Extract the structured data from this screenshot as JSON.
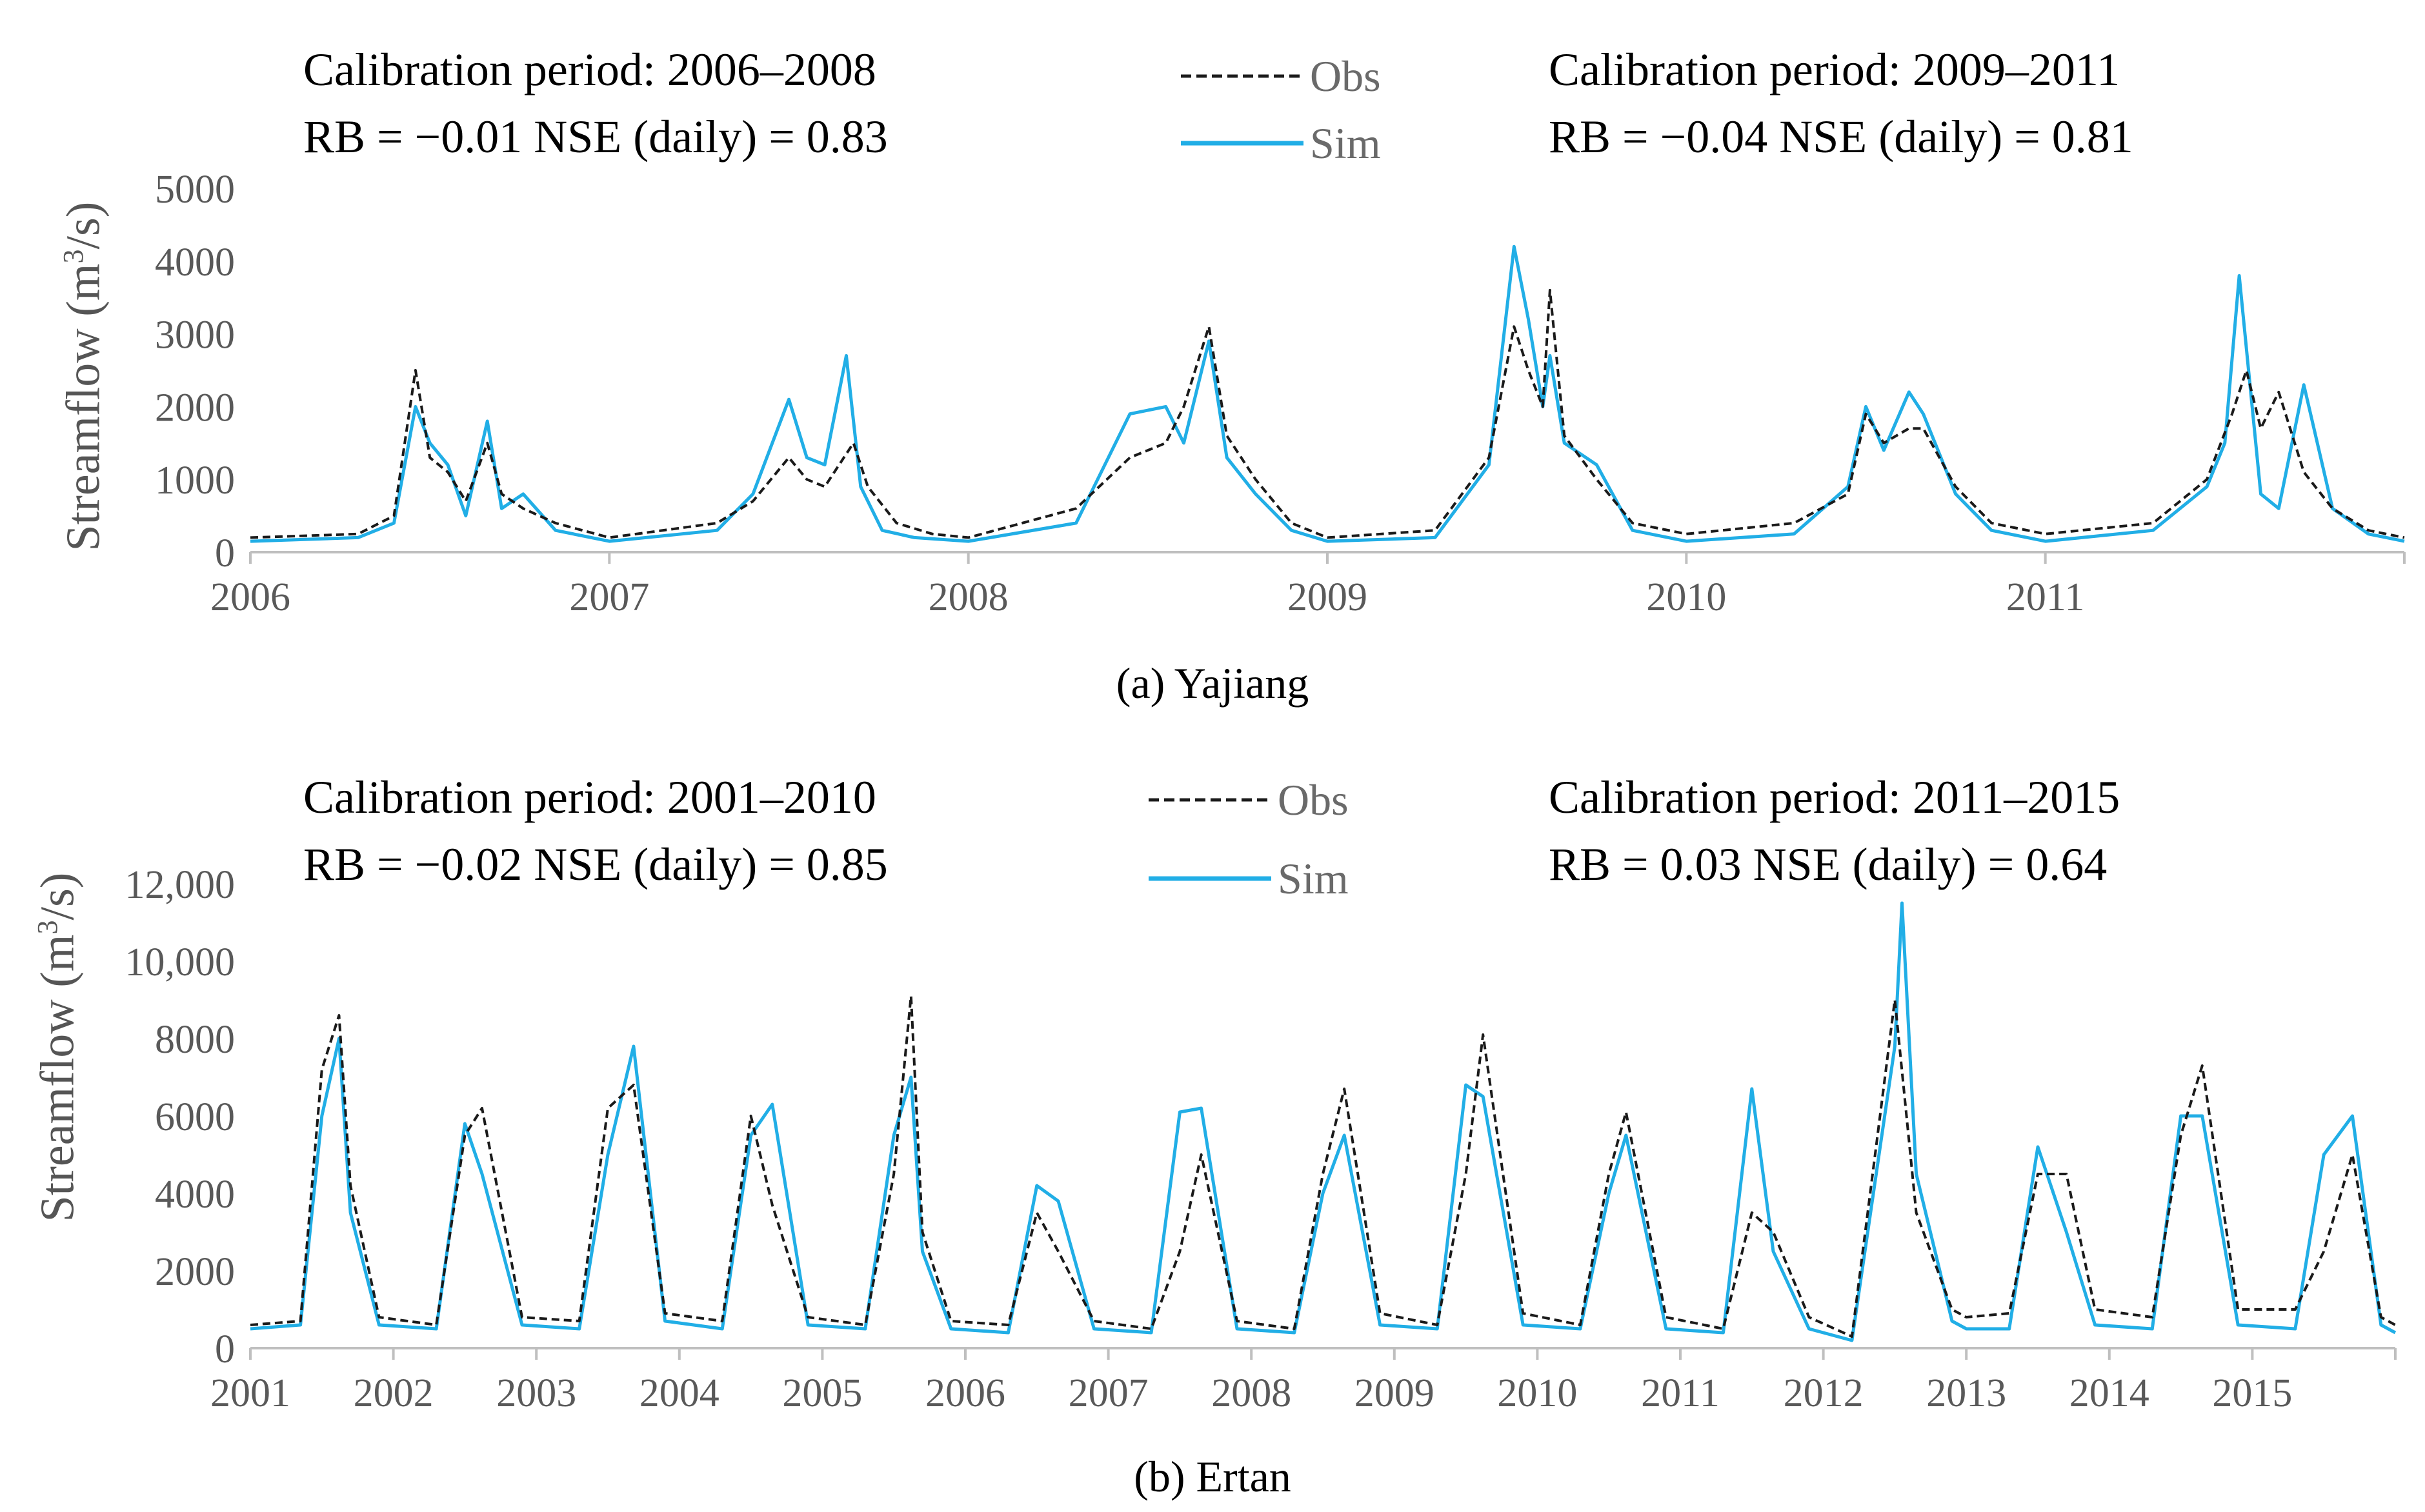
{
  "legend": {
    "obs": "Obs",
    "sim": "Sim"
  },
  "colors": {
    "obs": "#1a1a1a",
    "sim": "#21aee6",
    "axis": "#bfbfbf",
    "tick": "#595959"
  },
  "y_title": {
    "prefix": "Streamflow (m",
    "sup": "3",
    "suffix": "/s)"
  },
  "panel_a": {
    "left_period": "Calibration period: 2006–2008",
    "left_stats": "RB = −0.01  NSE (daily) = 0.83",
    "right_period": "Calibration period: 2009–2011",
    "right_stats": "RB = −0.04  NSE (daily) = 0.81",
    "caption": "(a) Yajiang"
  },
  "panel_b": {
    "left_period": "Calibration period: 2001–2010",
    "left_stats": "RB = −0.02  NSE (daily) = 0.85",
    "right_period": "Calibration period: 2011–2015",
    "right_stats": "RB = 0.03  NSE (daily) = 0.64",
    "caption": "(b) Ertan"
  },
  "chart_data": [
    {
      "type": "line",
      "title": "(a) Yajiang",
      "ylabel": "Streamflow (m3/s)",
      "ylim": [
        0,
        5000
      ],
      "yticks": [
        "0",
        "1000",
        "2000",
        "3000",
        "4000",
        "5000"
      ],
      "xlim": [
        2006,
        2012
      ],
      "xticks": [
        "2006",
        "2007",
        "2008",
        "2009",
        "2010",
        "2011"
      ],
      "grid": false,
      "legend": "top-center",
      "series": [
        {
          "name": "Obs",
          "style": "dashed",
          "x": [
            2006.0,
            2006.3,
            2006.4,
            2006.46,
            2006.5,
            2006.55,
            2006.6,
            2006.66,
            2006.7,
            2006.76,
            2006.85,
            2007.0,
            2007.3,
            2007.4,
            2007.5,
            2007.55,
            2007.6,
            2007.68,
            2007.72,
            2007.8,
            2007.9,
            2008.0,
            2008.3,
            2008.45,
            2008.55,
            2008.6,
            2008.67,
            2008.72,
            2008.8,
            2008.9,
            2009.0,
            2009.3,
            2009.45,
            2009.52,
            2009.56,
            2009.6,
            2009.62,
            2009.66,
            2009.75,
            2009.85,
            2010.0,
            2010.3,
            2010.45,
            2010.5,
            2010.55,
            2010.62,
            2010.66,
            2010.75,
            2010.85,
            2011.0,
            2011.3,
            2011.45,
            2011.52,
            2011.56,
            2011.6,
            2011.65,
            2011.72,
            2011.8,
            2011.9,
            2012.0
          ],
          "y": [
            200,
            250,
            500,
            2500,
            1300,
            1100,
            700,
            1500,
            800,
            600,
            400,
            200,
            400,
            700,
            1300,
            1000,
            900,
            1500,
            900,
            400,
            250,
            200,
            600,
            1300,
            1500,
            2000,
            3100,
            1600,
            1000,
            400,
            200,
            300,
            1300,
            3100,
            2500,
            2000,
            3600,
            1600,
            1000,
            400,
            250,
            400,
            800,
            1900,
            1500,
            1700,
            1700,
            900,
            400,
            250,
            400,
            1000,
            1900,
            2500,
            1700,
            2200,
            1100,
            600,
            300,
            200
          ]
        },
        {
          "name": "Sim",
          "style": "solid",
          "x": [
            2006.0,
            2006.3,
            2006.4,
            2006.46,
            2006.5,
            2006.55,
            2006.6,
            2006.66,
            2006.7,
            2006.76,
            2006.85,
            2007.0,
            2007.3,
            2007.4,
            2007.5,
            2007.55,
            2007.6,
            2007.66,
            2007.7,
            2007.76,
            2007.85,
            2008.0,
            2008.3,
            2008.45,
            2008.55,
            2008.6,
            2008.67,
            2008.72,
            2008.8,
            2008.9,
            2009.0,
            2009.3,
            2009.45,
            2009.52,
            2009.56,
            2009.6,
            2009.62,
            2009.66,
            2009.75,
            2009.85,
            2010.0,
            2010.3,
            2010.45,
            2010.5,
            2010.55,
            2010.62,
            2010.66,
            2010.75,
            2010.85,
            2011.0,
            2011.3,
            2011.45,
            2011.5,
            2011.54,
            2011.6,
            2011.65,
            2011.72,
            2011.8,
            2011.9,
            2012.0
          ],
          "y": [
            150,
            200,
            400,
            2000,
            1500,
            1200,
            500,
            1800,
            600,
            800,
            300,
            150,
            300,
            800,
            2100,
            1300,
            1200,
            2700,
            900,
            300,
            200,
            150,
            400,
            1900,
            2000,
            1500,
            2900,
            1300,
            800,
            300,
            150,
            200,
            1200,
            4200,
            3200,
            2000,
            2700,
            1500,
            1200,
            300,
            150,
            250,
            900,
            2000,
            1400,
            2200,
            1900,
            800,
            300,
            150,
            300,
            900,
            1500,
            3800,
            800,
            600,
            2300,
            600,
            250,
            150
          ]
        }
      ]
    },
    {
      "type": "line",
      "title": "(b) Ertan",
      "ylabel": "Streamflow (m3/s)",
      "ylim": [
        0,
        12000
      ],
      "yticks": [
        "0",
        "2000",
        "4000",
        "6000",
        "8000",
        "10,000",
        "12,000"
      ],
      "xlim": [
        2001,
        2016
      ],
      "xticks": [
        "2001",
        "2002",
        "2003",
        "2004",
        "2005",
        "2006",
        "2007",
        "2008",
        "2009",
        "2010",
        "2011",
        "2012",
        "2013",
        "2014",
        "2015"
      ],
      "grid": false,
      "legend": "top-center",
      "series": [
        {
          "name": "Obs",
          "style": "dashed",
          "x": [
            2001.0,
            2001.35,
            2001.5,
            2001.62,
            2001.7,
            2001.9,
            2002.3,
            2002.5,
            2002.62,
            2002.9,
            2003.3,
            2003.5,
            2003.68,
            2003.9,
            2004.3,
            2004.5,
            2004.65,
            2004.9,
            2005.3,
            2005.5,
            2005.62,
            2005.7,
            2005.9,
            2006.3,
            2006.5,
            2006.65,
            2006.9,
            2007.3,
            2007.5,
            2007.65,
            2007.9,
            2008.3,
            2008.5,
            2008.65,
            2008.9,
            2009.3,
            2009.5,
            2009.62,
            2009.9,
            2010.3,
            2010.5,
            2010.62,
            2010.9,
            2011.3,
            2011.5,
            2011.65,
            2011.9,
            2012.2,
            2012.5,
            2012.65,
            2012.9,
            2013.0,
            2013.3,
            2013.5,
            2013.7,
            2013.9,
            2014.3,
            2014.5,
            2014.65,
            2014.9,
            2015.3,
            2015.5,
            2015.7,
            2015.9,
            2016.0
          ],
          "y": [
            600,
            700,
            7200,
            8600,
            4200,
            800,
            600,
            5500,
            6200,
            800,
            700,
            6200,
            6800,
            900,
            700,
            6000,
            3700,
            800,
            600,
            4500,
            9100,
            3000,
            700,
            600,
            3500,
            2500,
            700,
            500,
            2500,
            5000,
            700,
            500,
            4500,
            6700,
            900,
            600,
            4500,
            8100,
            900,
            600,
            4500,
            6100,
            800,
            500,
            3500,
            3000,
            800,
            300,
            9000,
            3500,
            1000,
            800,
            900,
            4500,
            4500,
            1000,
            800,
            5500,
            7300,
            1000,
            1000,
            2500,
            5000,
            800,
            600
          ]
        },
        {
          "name": "Sim",
          "style": "solid",
          "x": [
            2001.0,
            2001.35,
            2001.5,
            2001.62,
            2001.7,
            2001.9,
            2002.3,
            2002.5,
            2002.62,
            2002.9,
            2003.3,
            2003.5,
            2003.68,
            2003.9,
            2004.3,
            2004.5,
            2004.65,
            2004.9,
            2005.3,
            2005.5,
            2005.62,
            2005.7,
            2005.9,
            2006.3,
            2006.5,
            2006.65,
            2006.9,
            2007.3,
            2007.5,
            2007.65,
            2007.9,
            2008.3,
            2008.5,
            2008.65,
            2008.9,
            2009.3,
            2009.5,
            2009.62,
            2009.9,
            2010.3,
            2010.5,
            2010.62,
            2010.9,
            2011.3,
            2011.5,
            2011.65,
            2011.9,
            2012.2,
            2012.5,
            2012.55,
            2012.65,
            2012.9,
            2013.0,
            2013.3,
            2013.5,
            2013.7,
            2013.9,
            2014.3,
            2014.5,
            2014.65,
            2014.9,
            2015.3,
            2015.5,
            2015.7,
            2015.9,
            2016.0
          ],
          "y": [
            500,
            600,
            6000,
            8000,
            3500,
            600,
            500,
            5800,
            4500,
            600,
            500,
            5000,
            7800,
            700,
            500,
            5500,
            6300,
            600,
            500,
            5500,
            7000,
            2500,
            500,
            400,
            4200,
            3800,
            500,
            400,
            6100,
            6200,
            500,
            400,
            4000,
            5500,
            600,
            500,
            6800,
            6500,
            600,
            500,
            4000,
            5500,
            500,
            400,
            6700,
            2500,
            500,
            200,
            7800,
            11500,
            4500,
            700,
            500,
            500,
            5200,
            3000,
            600,
            500,
            6000,
            6000,
            600,
            500,
            5000,
            6000,
            600,
            400
          ]
        }
      ]
    }
  ]
}
